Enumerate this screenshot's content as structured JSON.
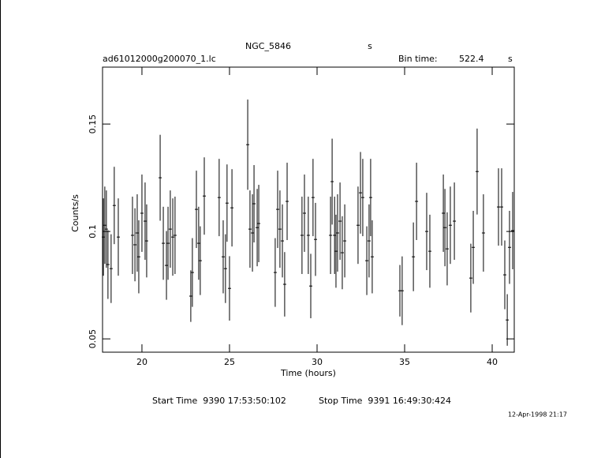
{
  "chart_data": {
    "type": "errorbar",
    "title": "NGC_5846",
    "title_unit": "s",
    "file_name": "ad61012000g200070_1.lc",
    "bin_time_label": "Bin time:",
    "bin_time": "522.4",
    "bin_time_unit": "s",
    "x_label": "Time (hours)",
    "y_label": "Counts/s",
    "start_time": "Start Time  9390 17:53:50:102",
    "stop_time": "Stop Time  9391 16:49:30:424",
    "timestamp": "12-Apr-1998 21:17",
    "color": "#000000",
    "xlim": [
      17.75,
      41.26
    ],
    "ylim": [
      0.0438,
      0.1765
    ],
    "xticks": [
      20,
      25,
      30,
      35,
      40
    ],
    "yticks": [
      0.05,
      0.1,
      0.15
    ],
    "x": [
      17.8,
      17.88,
      17.97,
      18.06,
      18.24,
      18.42,
      18.65,
      19.46,
      19.6,
      19.73,
      19.82,
      20.0,
      20.18,
      20.27,
      21.04,
      21.22,
      21.4,
      21.49,
      21.62,
      21.76,
      21.89,
      22.79,
      22.88,
      23.11,
      23.24,
      23.33,
      23.56,
      24.41,
      24.64,
      24.77,
      24.86,
      25.0,
      25.14,
      26.04,
      26.17,
      26.31,
      26.4,
      26.58,
      26.67,
      27.61,
      27.75,
      27.88,
      28.02,
      28.15,
      28.29,
      29.14,
      29.28,
      29.5,
      29.64,
      29.77,
      29.91,
      30.77,
      30.86,
      31.0,
      31.08,
      31.17,
      31.31,
      31.44,
      31.58,
      32.34,
      32.48,
      32.61,
      32.84,
      32.97,
      33.06,
      33.15,
      34.73,
      34.86,
      35.5,
      35.68,
      36.26,
      36.44,
      37.21,
      37.3,
      37.43,
      37.61,
      37.84,
      38.78,
      38.92,
      39.14,
      39.5,
      40.36,
      40.54,
      40.72,
      40.86,
      40.99,
      41.17
    ],
    "values": [
      0.0974,
      0.1029,
      0.1011,
      0.0846,
      0.0827,
      0.1121,
      0.0974,
      0.0982,
      0.0938,
      0.0993,
      0.0882,
      0.1085,
      0.1048,
      0.0956,
      0.125,
      0.0945,
      0.0842,
      0.0945,
      0.1011,
      0.0974,
      0.0982,
      0.0699,
      0.0809,
      0.1103,
      0.0945,
      0.0864,
      0.1165,
      0.1158,
      0.0882,
      0.0827,
      0.1132,
      0.0735,
      0.111,
      0.1404,
      0.1011,
      0.0993,
      0.1129,
      0.1018,
      0.1037,
      0.0809,
      0.1103,
      0.1011,
      0.0956,
      0.0754,
      0.114,
      0.0982,
      0.1085,
      0.0982,
      0.0746,
      0.1158,
      0.0963,
      0.0982,
      0.1232,
      0.0982,
      0.0908,
      0.0993,
      0.1048,
      0.0901,
      0.0956,
      0.1029,
      0.118,
      0.1158,
      0.0864,
      0.0956,
      0.1158,
      0.0882,
      0.0724,
      0.0724,
      0.0882,
      0.114,
      0.1,
      0.0908,
      0.1085,
      0.1018,
      0.0919,
      0.1029,
      0.1048,
      0.0783,
      0.0926,
      0.1279,
      0.0993,
      0.1114,
      0.1114,
      0.0798,
      0.0588,
      0.0926,
      0.1004
    ],
    "errors": [
      0.018,
      0.018,
      0.018,
      0.016,
      0.016,
      0.018,
      0.018,
      0.018,
      0.017,
      0.018,
      0.017,
      0.018,
      0.018,
      0.017,
      0.02,
      0.017,
      0.016,
      0.017,
      0.018,
      0.018,
      0.018,
      0.012,
      0.016,
      0.018,
      0.017,
      0.016,
      0.018,
      0.018,
      0.017,
      0.016,
      0.018,
      0.015,
      0.018,
      0.021,
      0.018,
      0.018,
      0.018,
      0.018,
      0.018,
      0.016,
      0.018,
      0.018,
      0.017,
      0.015,
      0.018,
      0.018,
      0.018,
      0.018,
      0.015,
      0.018,
      0.017,
      0.018,
      0.02,
      0.018,
      0.017,
      0.018,
      0.018,
      0.017,
      0.017,
      0.018,
      0.019,
      0.018,
      0.016,
      0.017,
      0.018,
      0.017,
      0.012,
      0.016,
      0.016,
      0.018,
      0.018,
      0.017,
      0.018,
      0.018,
      0.017,
      0.018,
      0.018,
      0.016,
      0.017,
      0.02,
      0.018,
      0.018,
      0.018,
      0.016,
      0.012,
      0.017,
      0.018
    ]
  }
}
